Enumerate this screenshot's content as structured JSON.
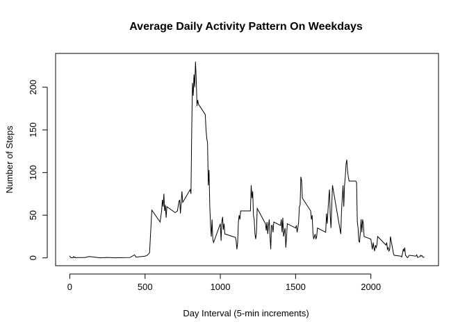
{
  "chart_data": {
    "type": "line",
    "title": "Average Daily Activity Pattern On Weekdays",
    "xlabel": "Day Interval (5-min increments)",
    "ylabel": "Number of Steps",
    "color": "#000000",
    "xlim": [
      -94.2,
      2449.2
    ],
    "ylim": [
      -9.2,
      239.6
    ],
    "xticks": [
      0,
      500,
      1000,
      1500,
      2000
    ],
    "yticks": [
      0,
      50,
      100,
      150,
      200
    ],
    "x": [
      0,
      5,
      10,
      15,
      20,
      25,
      30,
      35,
      40,
      50,
      100,
      130,
      200,
      250,
      300,
      400,
      430,
      440,
      500,
      515,
      530,
      545,
      600,
      610,
      615,
      620,
      625,
      630,
      635,
      640,
      645,
      700,
      715,
      725,
      730,
      735,
      745,
      750,
      800,
      805,
      810,
      815,
      820,
      825,
      830,
      835,
      840,
      845,
      850,
      855,
      900,
      905,
      910,
      915,
      920,
      925,
      930,
      935,
      940,
      945,
      950,
      955,
      1000,
      1005,
      1010,
      1015,
      1020,
      1025,
      1030,
      1100,
      1105,
      1110,
      1115,
      1120,
      1125,
      1130,
      1135,
      1200,
      1205,
      1210,
      1215,
      1220,
      1225,
      1230,
      1235,
      1240,
      1245,
      1300,
      1305,
      1310,
      1315,
      1320,
      1325,
      1330,
      1335,
      1340,
      1345,
      1350,
      1355,
      1400,
      1405,
      1410,
      1415,
      1420,
      1425,
      1430,
      1435,
      1440,
      1445,
      1500,
      1505,
      1510,
      1515,
      1520,
      1525,
      1530,
      1535,
      1540,
      1545,
      1600,
      1605,
      1610,
      1615,
      1620,
      1625,
      1630,
      1635,
      1640,
      1645,
      1700,
      1705,
      1710,
      1715,
      1720,
      1725,
      1730,
      1735,
      1740,
      1745,
      1800,
      1805,
      1810,
      1815,
      1820,
      1825,
      1830,
      1835,
      1840,
      1845,
      1850,
      1855,
      1900,
      1905,
      1910,
      1915,
      1920,
      1925,
      1930,
      1935,
      1940,
      1945,
      1950,
      1955,
      2000,
      2005,
      2010,
      2015,
      2020,
      2025,
      2030,
      2035,
      2040,
      2045,
      2100,
      2105,
      2110,
      2115,
      2120,
      2125,
      2130,
      2135,
      2140,
      2145,
      2150,
      2155,
      2200,
      2205,
      2210,
      2215,
      2220,
      2225,
      2230,
      2235,
      2240,
      2245,
      2250,
      2255,
      2300,
      2305,
      2310,
      2315,
      2320,
      2325,
      2330,
      2335,
      2340,
      2345,
      2350,
      2355
    ],
    "values": [
      2.3,
      0.5,
      0.2,
      0.2,
      0.1,
      1.5,
      0.3,
      0.9,
      0,
      0.4,
      0.4,
      1.6,
      0,
      0.5,
      0,
      0.4,
      3.5,
      0.9,
      2,
      3,
      6,
      56,
      42,
      55,
      68,
      60,
      75,
      55,
      62,
      47,
      60,
      53,
      55,
      66,
      68,
      52,
      78,
      65,
      80,
      75,
      150,
      205,
      190,
      215,
      200,
      230,
      210,
      178,
      185,
      180,
      168,
      150,
      140,
      135,
      85,
      103,
      60,
      38,
      25,
      45,
      22,
      18,
      40,
      20,
      42,
      48,
      33,
      40,
      28,
      24,
      20,
      10,
      18,
      42,
      50,
      45,
      55,
      55,
      85,
      70,
      78,
      50,
      45,
      28,
      22,
      30,
      58,
      40,
      32,
      42,
      28,
      38,
      45,
      25,
      10,
      38,
      38,
      30,
      42,
      38,
      45,
      30,
      47,
      25,
      30,
      35,
      12,
      25,
      40,
      35,
      38,
      30,
      35,
      42,
      60,
      62,
      95,
      90,
      70,
      55,
      45,
      50,
      30,
      22,
      25,
      28,
      22,
      25,
      35,
      30,
      52,
      40,
      55,
      70,
      80,
      50,
      35,
      60,
      85,
      28,
      55,
      70,
      85,
      60,
      85,
      95,
      110,
      115,
      102,
      95,
      90,
      90,
      88,
      42,
      35,
      20,
      18,
      30,
      45,
      30,
      45,
      40,
      25,
      22,
      15,
      10,
      18,
      12,
      8,
      15,
      12,
      15,
      25,
      15,
      18,
      10,
      12,
      8,
      10,
      25,
      20,
      15,
      10,
      5,
      3,
      2,
      1,
      5,
      10,
      8,
      12,
      3,
      2,
      0.5,
      0.3,
      2,
      3,
      2,
      3.5,
      0.5,
      0.7,
      1,
      1.5,
      3,
      2,
      2.5,
      1,
      0.5,
      1
    ]
  }
}
